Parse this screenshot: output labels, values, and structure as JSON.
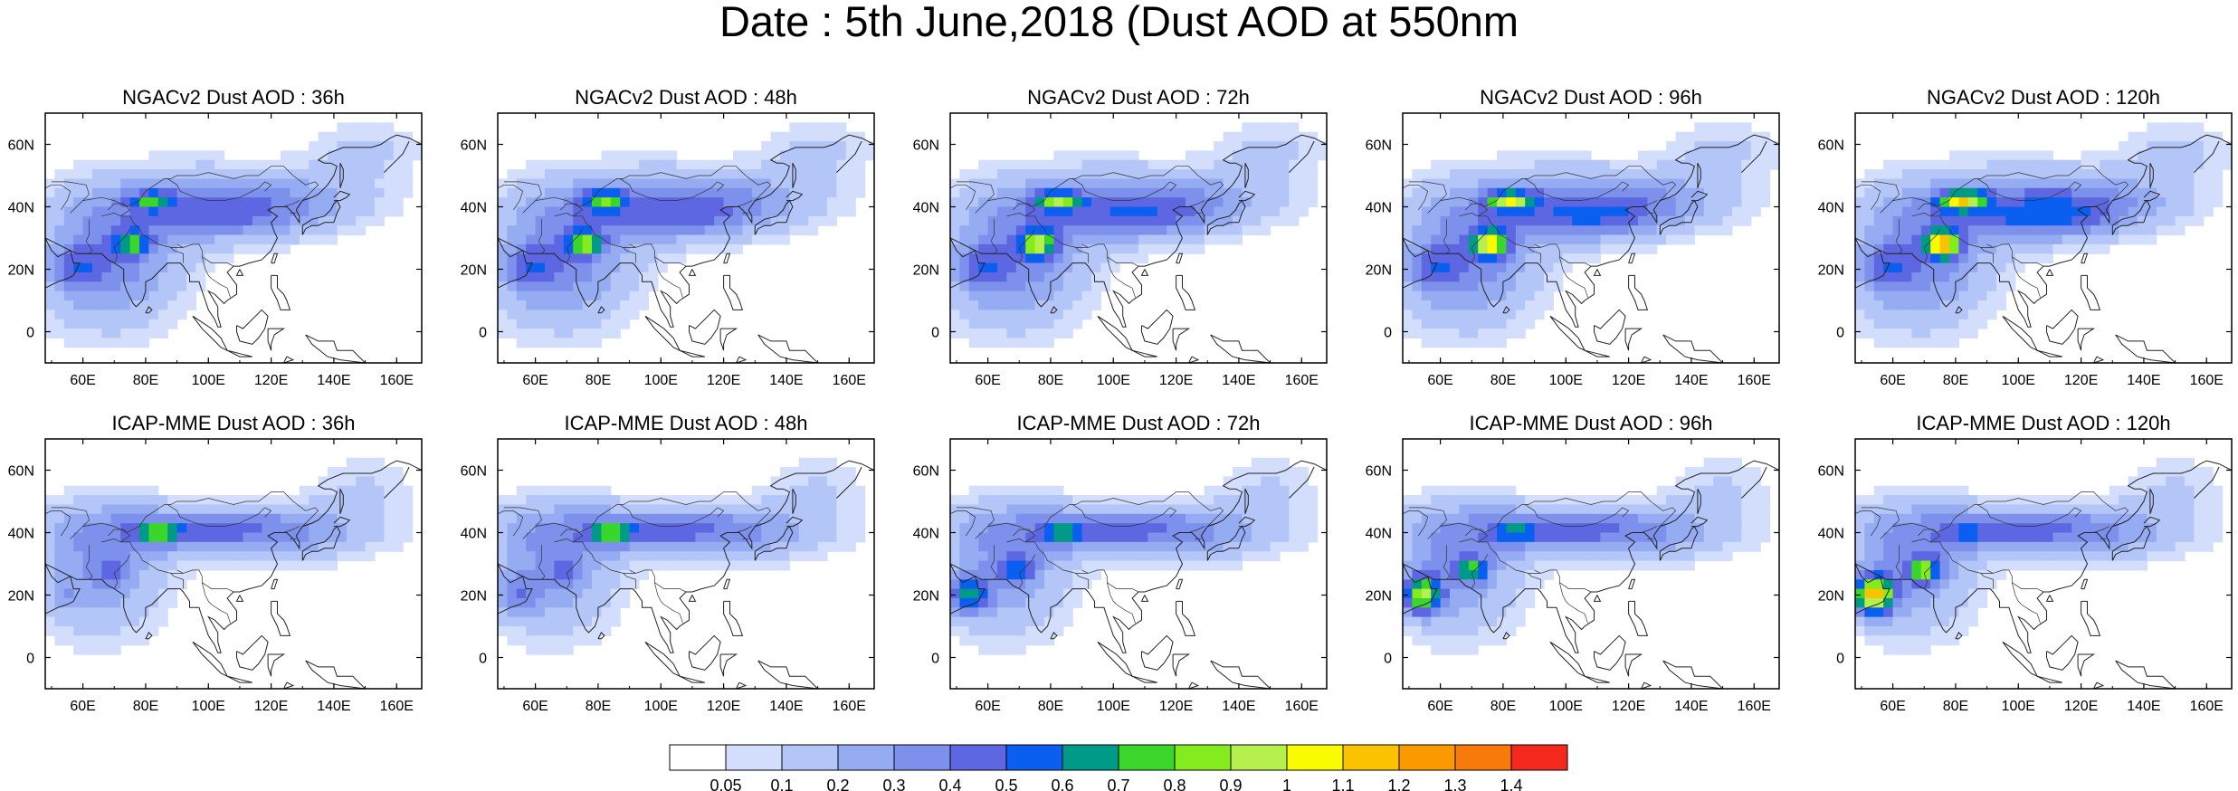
{
  "title": "Date : 5th June,2018 (Dust AOD at 550nm",
  "lon_ticks": [
    "60E",
    "80E",
    "100E",
    "120E",
    "140E",
    "160E"
  ],
  "lat_ticks": [
    "60N",
    "40N",
    "20N",
    "0"
  ],
  "map_extent": {
    "lon": [
      48,
      168
    ],
    "lat": [
      -10,
      70
    ]
  },
  "panels": [
    {
      "title": "NGACv2 Dust AOD : 36h",
      "model": "NGACv2",
      "lead_hours": 36
    },
    {
      "title": "NGACv2 Dust AOD : 48h",
      "model": "NGACv2",
      "lead_hours": 48
    },
    {
      "title": "NGACv2 Dust AOD : 72h",
      "model": "NGACv2",
      "lead_hours": 72
    },
    {
      "title": "NGACv2 Dust AOD : 96h",
      "model": "NGACv2",
      "lead_hours": 96
    },
    {
      "title": "NGACv2 Dust AOD : 120h",
      "model": "NGACv2",
      "lead_hours": 120
    },
    {
      "title": "ICAP-MME Dust AOD : 36h",
      "model": "ICAP-MME",
      "lead_hours": 36
    },
    {
      "title": "ICAP-MME Dust AOD : 48h",
      "model": "ICAP-MME",
      "lead_hours": 48
    },
    {
      "title": "ICAP-MME Dust AOD : 72h",
      "model": "ICAP-MME",
      "lead_hours": 72
    },
    {
      "title": "ICAP-MME Dust AOD : 96h",
      "model": "ICAP-MME",
      "lead_hours": 96
    },
    {
      "title": "ICAP-MME Dust AOD : 120h",
      "model": "ICAP-MME",
      "lead_hours": 120
    }
  ],
  "colorbar": {
    "colors": [
      "#ffffff",
      "#d2defc",
      "#b4c6f8",
      "#95abf2",
      "#7d90ec",
      "#5e67e2",
      "#0a5ff0",
      "#009a88",
      "#3ad62c",
      "#84ec1c",
      "#b6f04c",
      "#fafa00",
      "#fac200",
      "#fa9a00",
      "#f87a0a",
      "#f5281e"
    ],
    "labels": [
      "0.05",
      "0.1",
      "0.2",
      "0.3",
      "0.4",
      "0.5",
      "0.6",
      "0.7",
      "0.8",
      "0.9",
      "1",
      "1.1",
      "1.2",
      "1.3",
      "1.4"
    ]
  }
}
